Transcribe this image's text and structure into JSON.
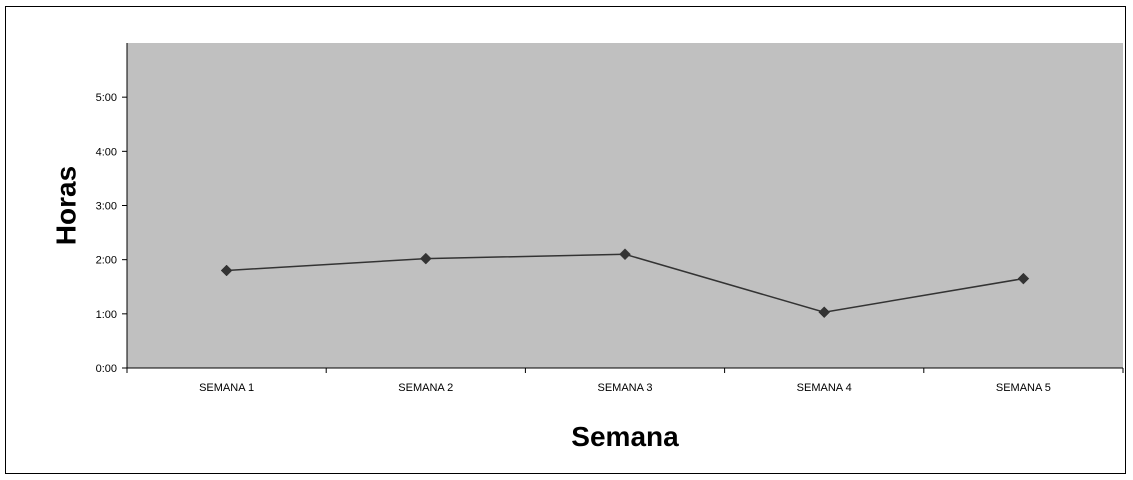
{
  "chart_data": {
    "type": "line",
    "title": "",
    "xlabel": "Semana",
    "ylabel": "Horas",
    "categories": [
      "SEMANA 1",
      "SEMANA 2",
      "SEMANA 3",
      "SEMANA 4",
      "SEMANA 5"
    ],
    "y_ticks": [
      "0:00",
      "1:00",
      "2:00",
      "3:00",
      "4:00",
      "5:00"
    ],
    "ylim_hours": [
      0,
      6
    ],
    "values_hours": [
      1.8,
      2.02,
      2.1,
      1.03,
      1.65
    ],
    "plot_background": "#c0c0c0",
    "line_color": "#333333",
    "marker": "diamond",
    "grid": false,
    "legend": "none"
  }
}
